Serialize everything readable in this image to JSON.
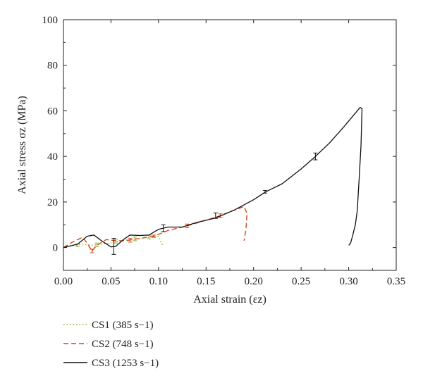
{
  "chart_data": {
    "type": "line",
    "title": "",
    "xlabel": "Axial strain (εz)",
    "ylabel": "Axial stress σz (MPa)",
    "xlim": [
      0,
      0.35
    ],
    "ylim": [
      -10,
      100
    ],
    "x_ticks": [
      "0.00",
      "0.05",
      "0.10",
      "0.15",
      "0.20",
      "0.25",
      "0.30",
      "0.35"
    ],
    "y_ticks": [
      "0",
      "20",
      "40",
      "60",
      "80",
      "100"
    ],
    "grid": false,
    "legend_position": "bottom-left",
    "series": [
      {
        "name": "CS1 (385 s−1)",
        "color": "#8db33b",
        "dash": "dotted",
        "points": [
          [
            0.0,
            0.0
          ],
          [
            0.01,
            0.8
          ],
          [
            0.02,
            1.5
          ],
          [
            0.03,
            1.0
          ],
          [
            0.04,
            1.5
          ],
          [
            0.05,
            2.0
          ],
          [
            0.06,
            3.0
          ],
          [
            0.07,
            3.5
          ],
          [
            0.08,
            4.0
          ],
          [
            0.09,
            4.5
          ],
          [
            0.1,
            5.0
          ],
          [
            0.103,
            2.0
          ],
          [
            0.105,
            0.5
          ]
        ],
        "error_bars": [
          {
            "x": 0.015,
            "y": 1.0,
            "err": 0.6
          },
          {
            "x": 0.035,
            "y": 1.2,
            "err": 0.8
          },
          {
            "x": 0.055,
            "y": 2.8,
            "err": 0.8
          },
          {
            "x": 0.075,
            "y": 3.8,
            "err": 0.8
          },
          {
            "x": 0.09,
            "y": 4.6,
            "err": 0.8
          }
        ]
      },
      {
        "name": "CS2 (748 s−1)",
        "color": "#d6451b",
        "dash": "dashed",
        "points": [
          [
            0.0,
            0.0
          ],
          [
            0.01,
            2.5
          ],
          [
            0.02,
            4.5
          ],
          [
            0.025,
            2.0
          ],
          [
            0.03,
            -1.5
          ],
          [
            0.035,
            1.0
          ],
          [
            0.045,
            3.5
          ],
          [
            0.055,
            3.0
          ],
          [
            0.065,
            3.0
          ],
          [
            0.08,
            4.0
          ],
          [
            0.095,
            5.0
          ],
          [
            0.11,
            7.5
          ],
          [
            0.13,
            9.5
          ],
          [
            0.15,
            12.0
          ],
          [
            0.165,
            14.0
          ],
          [
            0.18,
            16.5
          ],
          [
            0.19,
            18.0
          ],
          [
            0.193,
            15.0
          ],
          [
            0.192,
            8.0
          ],
          [
            0.19,
            3.0
          ]
        ],
        "error_bars": [
          {
            "x": 0.03,
            "y": -1.5,
            "err": 0.8
          },
          {
            "x": 0.07,
            "y": 3.2,
            "err": 0.8
          },
          {
            "x": 0.095,
            "y": 5.0,
            "err": 0.5
          },
          {
            "x": 0.13,
            "y": 9.5,
            "err": 0.8
          },
          {
            "x": 0.165,
            "y": 14.0,
            "err": 0.8
          }
        ]
      },
      {
        "name": "CS3 (1253 s−1)",
        "color": "#111111",
        "dash": "solid",
        "points": [
          [
            0.0,
            0.0
          ],
          [
            0.015,
            1.5
          ],
          [
            0.025,
            5.0
          ],
          [
            0.032,
            5.5
          ],
          [
            0.04,
            3.0
          ],
          [
            0.05,
            0.3
          ],
          [
            0.055,
            0.5
          ],
          [
            0.063,
            3.5
          ],
          [
            0.07,
            5.5
          ],
          [
            0.08,
            5.3
          ],
          [
            0.09,
            5.5
          ],
          [
            0.1,
            8.0
          ],
          [
            0.11,
            9.0
          ],
          [
            0.125,
            9.0
          ],
          [
            0.14,
            11.0
          ],
          [
            0.16,
            13.0
          ],
          [
            0.18,
            16.5
          ],
          [
            0.2,
            21.0
          ],
          [
            0.213,
            24.5
          ],
          [
            0.23,
            28.0
          ],
          [
            0.25,
            34.5
          ],
          [
            0.265,
            40.0
          ],
          [
            0.28,
            46.0
          ],
          [
            0.295,
            53.0
          ],
          [
            0.305,
            58.0
          ],
          [
            0.312,
            61.5
          ],
          [
            0.314,
            61.0
          ],
          [
            0.313,
            45.0
          ],
          [
            0.311,
            30.0
          ],
          [
            0.309,
            16.0
          ],
          [
            0.307,
            10.0
          ],
          [
            0.304,
            5.0
          ],
          [
            0.302,
            2.0
          ],
          [
            0.3,
            1.0
          ]
        ],
        "error_bars": [
          {
            "x": 0.053,
            "y": 0.5,
            "err": 3.5
          },
          {
            "x": 0.105,
            "y": 8.5,
            "err": 1.5
          },
          {
            "x": 0.16,
            "y": 14.0,
            "err": 1.2
          },
          {
            "x": 0.212,
            "y": 24.5,
            "err": 0.6
          },
          {
            "x": 0.265,
            "y": 40.0,
            "err": 1.5
          }
        ]
      }
    ]
  }
}
